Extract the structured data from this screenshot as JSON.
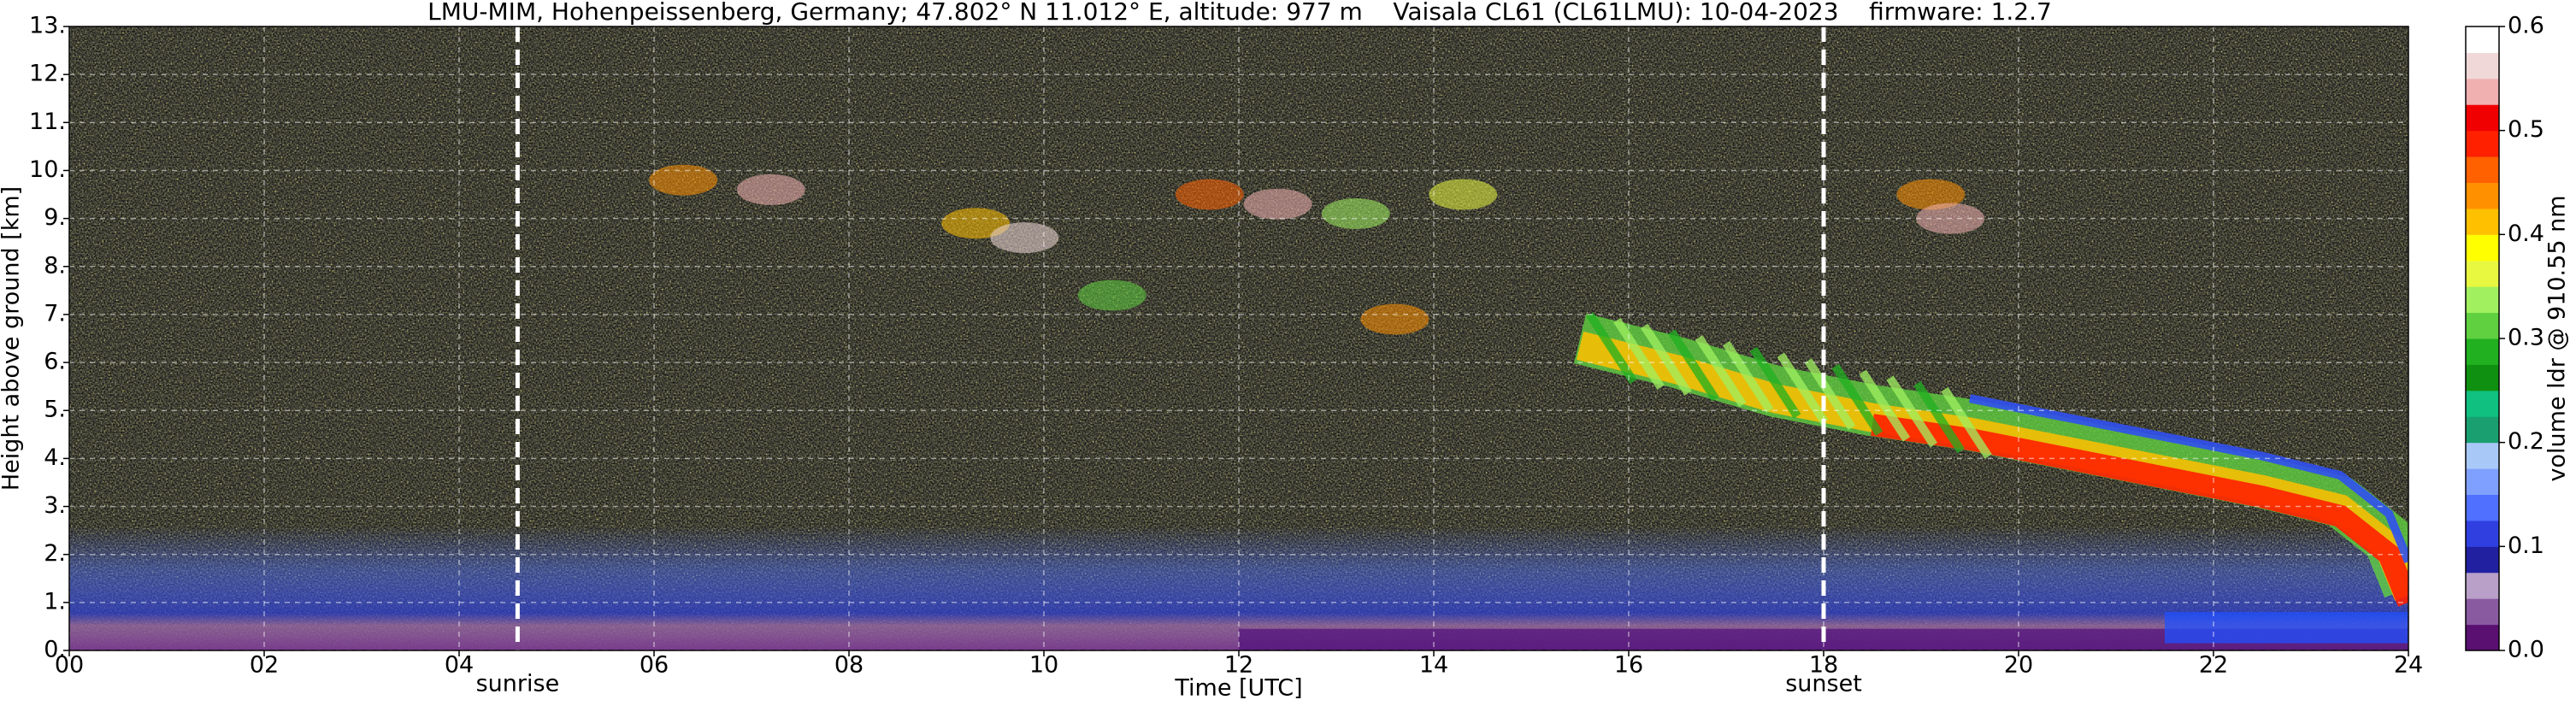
{
  "chart_data": {
    "type": "heatmap",
    "title": "LMU-MIM, Hohenpeissenberg, Germany; 47.802° N 11.012° E, altitude: 977 m    Vaisala CL61 (CL61LMU): 10-04-2023    firmware: 1.2.7",
    "xlabel": "Time [UTC]",
    "ylabel": "Height above ground [km]",
    "xlim": [
      0,
      24
    ],
    "xticks": [
      {
        "value": 0,
        "label": "00"
      },
      {
        "value": 2,
        "label": "02"
      },
      {
        "value": 4,
        "label": "04"
      },
      {
        "value": 6,
        "label": "06"
      },
      {
        "value": 8,
        "label": "08"
      },
      10,
      12,
      14,
      16,
      18,
      20,
      22,
      24
    ],
    "ylim": [
      0,
      13
    ],
    "yticks": [
      {
        "value": 0,
        "label": "0."
      },
      {
        "value": 1,
        "label": "1."
      },
      {
        "value": 2,
        "label": "2."
      },
      {
        "value": 3,
        "label": "3."
      },
      {
        "value": 4,
        "label": "4."
      },
      {
        "value": 5,
        "label": "5."
      },
      {
        "value": 6,
        "label": "6."
      },
      {
        "value": 7,
        "label": "7."
      },
      {
        "value": 8,
        "label": "8."
      },
      {
        "value": 9,
        "label": "9."
      },
      {
        "value": 10,
        "label": "10."
      },
      {
        "value": 11,
        "label": "11."
      },
      {
        "value": 12,
        "label": "12."
      },
      {
        "value": 13,
        "label": "13."
      }
    ],
    "grid": true,
    "colorbar": {
      "label": "volume ldr @ 910.55 nm",
      "clim": [
        0,
        0.6
      ],
      "ticks": [
        {
          "value": 0,
          "label": "0.0"
        },
        0.1,
        0.2,
        0.3,
        0.4,
        0.5,
        0.6
      ],
      "colors": [
        "#5a1070",
        "#8a5aa0",
        "#b8a0c8",
        "#2020a0",
        "#3040e0",
        "#5070ff",
        "#80a0ff",
        "#a8c8f8",
        "#1aa070",
        "#10c080",
        "#109010",
        "#20b020",
        "#60d040",
        "#a0f060",
        "#e8f840",
        "#ffff00",
        "#ffc000",
        "#ff9000",
        "#ff6000",
        "#ff2000",
        "#f00000",
        "#f0b0b0",
        "#f0d8d8",
        "#ffffff"
      ]
    },
    "annotations": [
      {
        "x": 4.6,
        "label": "sunrise"
      },
      {
        "x": 18,
        "label": "sunset"
      }
    ]
  }
}
